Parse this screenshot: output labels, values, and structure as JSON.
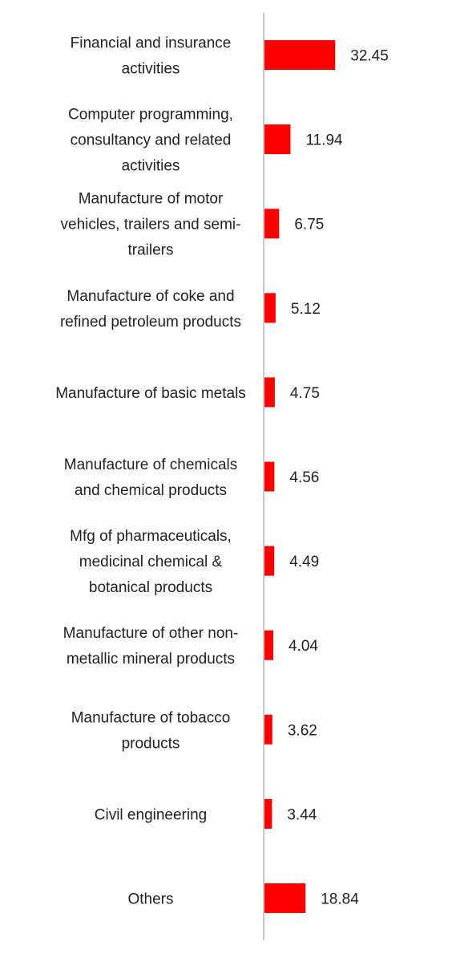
{
  "chart_data": {
    "type": "bar",
    "orientation": "horizontal",
    "categories": [
      [
        "Financial and insurance",
        "activities"
      ],
      [
        "Computer programming,",
        "consultancy and related",
        "activities"
      ],
      [
        "Manufacture of motor",
        "vehicles, trailers and semi-",
        "trailers"
      ],
      [
        "Manufacture of coke and",
        "refined petroleum products"
      ],
      [
        "Manufacture of basic metals"
      ],
      [
        "Manufacture of chemicals",
        "and chemical products"
      ],
      [
        "Mfg of pharmaceuticals,",
        "medicinal chemical &",
        "botanical products"
      ],
      [
        "Manufacture of other non-",
        "metallic mineral products"
      ],
      [
        "Manufacture of tobacco",
        "products"
      ],
      [
        "Civil engineering"
      ],
      [
        "Others"
      ]
    ],
    "values": [
      32.45,
      11.94,
      6.75,
      5.12,
      4.75,
      4.56,
      4.49,
      4.04,
      3.62,
      3.44,
      18.84
    ],
    "value_labels": [
      "32.45",
      "11.94",
      "6.75",
      "5.12",
      "4.75",
      "4.56",
      "4.49",
      "4.04",
      "3.62",
      "3.44",
      "18.84"
    ],
    "xlim": [
      0,
      100
    ],
    "bar_color": "#ff0000",
    "axis_color": "#c8c8c8",
    "grid": false,
    "legend": "none",
    "title": "",
    "xlabel": "",
    "ylabel": ""
  }
}
